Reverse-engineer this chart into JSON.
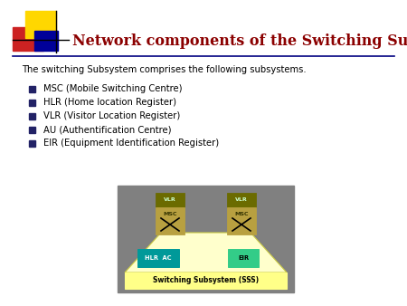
{
  "title": "Network components of the Switching Subsystem",
  "title_color": "#8B0000",
  "subtitle": "The switching Subsystem comprises the following subsystems.",
  "subtitle_color": "#000000",
  "bullet_items": [
    "MSC (Mobile Switching Centre)",
    "HLR (Home location Register)",
    "VLR (Visitor Location Register)",
    "AU (Authentification Centre)",
    "EIR (Equipment Identification Register)"
  ],
  "bullet_color": "#000000",
  "bg_color": "#ffffff",
  "header_line_color": "#000080",
  "logo_yellow": "#FFD700",
  "logo_red": "#CC2222",
  "logo_blue": "#000099",
  "diagram_bg": "#808080",
  "diagram_platform_color": "#FFFFCC",
  "diagram_platform_border": "#CCCC44",
  "diagram_label_color": "#FFFF88",
  "diagram_vlr_color": "#6B6B00",
  "diagram_msc_color": "#B8A040",
  "diagram_teal": "#009999",
  "diagram_green": "#33CC88"
}
